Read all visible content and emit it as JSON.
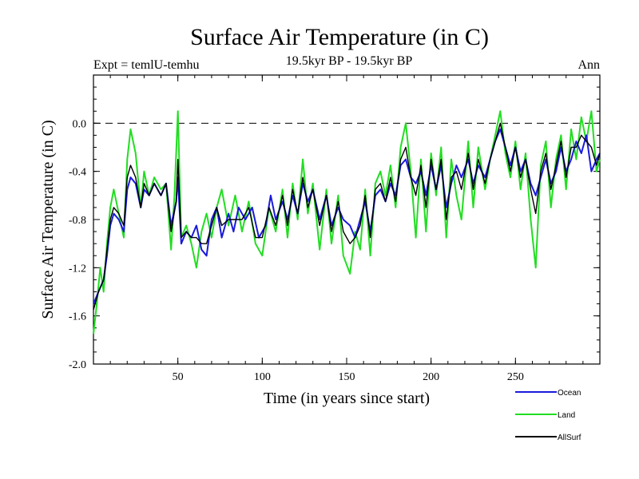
{
  "chart_data": {
    "type": "line",
    "title": "Surface Air Temperature (in C)",
    "subtitle": "19.5kyr BP - 19.5kyr BP",
    "experiment_label": "Expt = temlU-temhu",
    "season_label": "Ann",
    "xlabel": "Time (in years since start)",
    "ylabel": "Surface Air Temperature (in C)",
    "xlim": [
      0,
      300
    ],
    "ylim": [
      -2.0,
      0.4
    ],
    "x_ticks": [
      50,
      100,
      150,
      200,
      250
    ],
    "x_tick_labels": [
      "50",
      "100",
      "150",
      "200",
      "250"
    ],
    "y_ticks": [
      -2.0,
      -1.6,
      -1.2,
      -0.8,
      -0.4,
      0.0
    ],
    "y_tick_labels": [
      "-2.0",
      "-1.6",
      "-1.2",
      "-0.8",
      "-0.4",
      "0.0"
    ],
    "reference_line": 0.0,
    "series": [
      {
        "name": "Ocean",
        "color": "#1a1adc",
        "points": [
          [
            0,
            -1.5
          ],
          [
            3,
            -1.4
          ],
          [
            6,
            -1.3
          ],
          [
            8,
            -1.1
          ],
          [
            10,
            -0.85
          ],
          [
            12,
            -0.75
          ],
          [
            15,
            -0.8
          ],
          [
            18,
            -0.9
          ],
          [
            20,
            -0.55
          ],
          [
            22,
            -0.45
          ],
          [
            25,
            -0.5
          ],
          [
            28,
            -0.7
          ],
          [
            30,
            -0.55
          ],
          [
            33,
            -0.6
          ],
          [
            36,
            -0.5
          ],
          [
            40,
            -0.6
          ],
          [
            43,
            -0.5
          ],
          [
            46,
            -0.85
          ],
          [
            49,
            -0.65
          ],
          [
            50,
            -0.45
          ],
          [
            52,
            -1.0
          ],
          [
            55,
            -0.9
          ],
          [
            58,
            -0.95
          ],
          [
            61,
            -0.85
          ],
          [
            64,
            -1.05
          ],
          [
            67,
            -1.1
          ],
          [
            70,
            -0.8
          ],
          [
            73,
            -0.7
          ],
          [
            76,
            -0.95
          ],
          [
            80,
            -0.75
          ],
          [
            83,
            -0.9
          ],
          [
            86,
            -0.7
          ],
          [
            90,
            -0.8
          ],
          [
            94,
            -0.7
          ],
          [
            98,
            -0.95
          ],
          [
            102,
            -0.85
          ],
          [
            105,
            -0.6
          ],
          [
            108,
            -0.8
          ],
          [
            112,
            -0.65
          ],
          [
            115,
            -0.8
          ],
          [
            118,
            -0.6
          ],
          [
            121,
            -0.75
          ],
          [
            124,
            -0.5
          ],
          [
            127,
            -0.65
          ],
          [
            130,
            -0.55
          ],
          [
            134,
            -0.8
          ],
          [
            138,
            -0.6
          ],
          [
            141,
            -0.85
          ],
          [
            145,
            -0.7
          ],
          [
            148,
            -0.8
          ],
          [
            152,
            -0.85
          ],
          [
            155,
            -0.95
          ],
          [
            158,
            -0.8
          ],
          [
            161,
            -0.65
          ],
          [
            164,
            -0.9
          ],
          [
            167,
            -0.6
          ],
          [
            170,
            -0.55
          ],
          [
            173,
            -0.65
          ],
          [
            176,
            -0.5
          ],
          [
            179,
            -0.6
          ],
          [
            182,
            -0.35
          ],
          [
            185,
            -0.3
          ],
          [
            188,
            -0.45
          ],
          [
            191,
            -0.5
          ],
          [
            194,
            -0.4
          ],
          [
            197,
            -0.6
          ],
          [
            200,
            -0.35
          ],
          [
            203,
            -0.55
          ],
          [
            206,
            -0.35
          ],
          [
            209,
            -0.7
          ],
          [
            212,
            -0.5
          ],
          [
            215,
            -0.35
          ],
          [
            218,
            -0.45
          ],
          [
            222,
            -0.3
          ],
          [
            225,
            -0.5
          ],
          [
            228,
            -0.35
          ],
          [
            232,
            -0.45
          ],
          [
            235,
            -0.3
          ],
          [
            238,
            -0.15
          ],
          [
            241,
            -0.05
          ],
          [
            244,
            -0.2
          ],
          [
            247,
            -0.35
          ],
          [
            250,
            -0.2
          ],
          [
            253,
            -0.4
          ],
          [
            256,
            -0.3
          ],
          [
            259,
            -0.5
          ],
          [
            262,
            -0.6
          ],
          [
            265,
            -0.45
          ],
          [
            268,
            -0.3
          ],
          [
            271,
            -0.5
          ],
          [
            274,
            -0.4
          ],
          [
            277,
            -0.2
          ],
          [
            280,
            -0.4
          ],
          [
            283,
            -0.3
          ],
          [
            286,
            -0.15
          ],
          [
            289,
            -0.25
          ],
          [
            292,
            -0.1
          ],
          [
            295,
            -0.4
          ],
          [
            298,
            -0.3
          ],
          [
            300,
            -0.25
          ]
        ]
      },
      {
        "name": "Land",
        "color": "#22dd22",
        "points": [
          [
            0,
            -1.75
          ],
          [
            2,
            -1.5
          ],
          [
            4,
            -1.2
          ],
          [
            6,
            -1.4
          ],
          [
            8,
            -1.0
          ],
          [
            10,
            -0.7
          ],
          [
            12,
            -0.55
          ],
          [
            15,
            -0.75
          ],
          [
            18,
            -0.95
          ],
          [
            20,
            -0.3
          ],
          [
            22,
            -0.05
          ],
          [
            25,
            -0.25
          ],
          [
            28,
            -0.7
          ],
          [
            30,
            -0.4
          ],
          [
            33,
            -0.6
          ],
          [
            36,
            -0.45
          ],
          [
            40,
            -0.55
          ],
          [
            43,
            -0.5
          ],
          [
            46,
            -1.05
          ],
          [
            48,
            -0.6
          ],
          [
            50,
            0.1
          ],
          [
            52,
            -0.95
          ],
          [
            55,
            -0.85
          ],
          [
            58,
            -1.0
          ],
          [
            61,
            -1.2
          ],
          [
            64,
            -0.9
          ],
          [
            67,
            -0.75
          ],
          [
            70,
            -0.95
          ],
          [
            73,
            -0.7
          ],
          [
            76,
            -0.55
          ],
          [
            80,
            -0.85
          ],
          [
            84,
            -0.6
          ],
          [
            88,
            -0.9
          ],
          [
            92,
            -0.65
          ],
          [
            96,
            -1.0
          ],
          [
            100,
            -1.1
          ],
          [
            104,
            -0.7
          ],
          [
            108,
            -0.9
          ],
          [
            112,
            -0.55
          ],
          [
            115,
            -0.95
          ],
          [
            118,
            -0.5
          ],
          [
            121,
            -0.8
          ],
          [
            124,
            -0.3
          ],
          [
            127,
            -0.75
          ],
          [
            130,
            -0.5
          ],
          [
            134,
            -1.05
          ],
          [
            138,
            -0.55
          ],
          [
            141,
            -1.0
          ],
          [
            145,
            -0.6
          ],
          [
            148,
            -1.1
          ],
          [
            152,
            -1.25
          ],
          [
            155,
            -0.9
          ],
          [
            158,
            -1.05
          ],
          [
            161,
            -0.55
          ],
          [
            164,
            -1.1
          ],
          [
            167,
            -0.5
          ],
          [
            170,
            -0.4
          ],
          [
            173,
            -0.6
          ],
          [
            176,
            -0.35
          ],
          [
            179,
            -0.7
          ],
          [
            182,
            -0.2
          ],
          [
            185,
            0.0
          ],
          [
            188,
            -0.4
          ],
          [
            191,
            -0.95
          ],
          [
            194,
            -0.3
          ],
          [
            197,
            -0.9
          ],
          [
            200,
            -0.25
          ],
          [
            203,
            -0.6
          ],
          [
            206,
            -0.2
          ],
          [
            209,
            -0.95
          ],
          [
            212,
            -0.3
          ],
          [
            215,
            -0.6
          ],
          [
            218,
            -0.8
          ],
          [
            222,
            -0.15
          ],
          [
            225,
            -0.7
          ],
          [
            228,
            -0.2
          ],
          [
            232,
            -0.55
          ],
          [
            235,
            -0.3
          ],
          [
            238,
            -0.1
          ],
          [
            241,
            0.1
          ],
          [
            244,
            -0.25
          ],
          [
            247,
            -0.45
          ],
          [
            250,
            -0.15
          ],
          [
            253,
            -0.55
          ],
          [
            256,
            -0.25
          ],
          [
            259,
            -0.8
          ],
          [
            262,
            -1.2
          ],
          [
            265,
            -0.35
          ],
          [
            268,
            -0.15
          ],
          [
            271,
            -0.7
          ],
          [
            274,
            -0.3
          ],
          [
            277,
            -0.1
          ],
          [
            280,
            -0.55
          ],
          [
            283,
            -0.05
          ],
          [
            286,
            -0.3
          ],
          [
            289,
            0.05
          ],
          [
            292,
            -0.15
          ],
          [
            295,
            0.1
          ],
          [
            298,
            -0.4
          ],
          [
            300,
            -0.3
          ]
        ]
      },
      {
        "name": "AllSurf",
        "color": "#000000",
        "points": [
          [
            0,
            -1.55
          ],
          [
            3,
            -1.4
          ],
          [
            6,
            -1.3
          ],
          [
            8,
            -1.05
          ],
          [
            10,
            -0.8
          ],
          [
            12,
            -0.7
          ],
          [
            15,
            -0.75
          ],
          [
            18,
            -0.85
          ],
          [
            20,
            -0.45
          ],
          [
            22,
            -0.35
          ],
          [
            25,
            -0.45
          ],
          [
            28,
            -0.7
          ],
          [
            30,
            -0.5
          ],
          [
            33,
            -0.6
          ],
          [
            36,
            -0.5
          ],
          [
            40,
            -0.6
          ],
          [
            43,
            -0.5
          ],
          [
            46,
            -0.9
          ],
          [
            49,
            -0.65
          ],
          [
            50,
            -0.3
          ],
          [
            52,
            -0.95
          ],
          [
            55,
            -0.9
          ],
          [
            58,
            -0.95
          ],
          [
            61,
            -0.95
          ],
          [
            64,
            -1.0
          ],
          [
            67,
            -1.0
          ],
          [
            70,
            -0.85
          ],
          [
            73,
            -0.7
          ],
          [
            76,
            -0.85
          ],
          [
            80,
            -0.8
          ],
          [
            84,
            -0.8
          ],
          [
            88,
            -0.8
          ],
          [
            92,
            -0.7
          ],
          [
            96,
            -0.95
          ],
          [
            100,
            -0.95
          ],
          [
            104,
            -0.7
          ],
          [
            108,
            -0.85
          ],
          [
            112,
            -0.6
          ],
          [
            115,
            -0.85
          ],
          [
            118,
            -0.55
          ],
          [
            121,
            -0.75
          ],
          [
            124,
            -0.45
          ],
          [
            127,
            -0.7
          ],
          [
            130,
            -0.55
          ],
          [
            134,
            -0.85
          ],
          [
            138,
            -0.6
          ],
          [
            141,
            -0.9
          ],
          [
            145,
            -0.65
          ],
          [
            148,
            -0.9
          ],
          [
            152,
            -1.0
          ],
          [
            155,
            -0.95
          ],
          [
            158,
            -0.85
          ],
          [
            161,
            -0.6
          ],
          [
            164,
            -0.95
          ],
          [
            167,
            -0.55
          ],
          [
            170,
            -0.5
          ],
          [
            173,
            -0.65
          ],
          [
            176,
            -0.45
          ],
          [
            179,
            -0.65
          ],
          [
            182,
            -0.3
          ],
          [
            185,
            -0.2
          ],
          [
            188,
            -0.45
          ],
          [
            191,
            -0.6
          ],
          [
            194,
            -0.35
          ],
          [
            197,
            -0.7
          ],
          [
            200,
            -0.3
          ],
          [
            203,
            -0.55
          ],
          [
            206,
            -0.3
          ],
          [
            209,
            -0.8
          ],
          [
            212,
            -0.45
          ],
          [
            215,
            -0.4
          ],
          [
            218,
            -0.55
          ],
          [
            222,
            -0.25
          ],
          [
            225,
            -0.55
          ],
          [
            228,
            -0.3
          ],
          [
            232,
            -0.5
          ],
          [
            235,
            -0.3
          ],
          [
            238,
            -0.15
          ],
          [
            241,
            0.0
          ],
          [
            244,
            -0.2
          ],
          [
            247,
            -0.4
          ],
          [
            250,
            -0.2
          ],
          [
            253,
            -0.45
          ],
          [
            256,
            -0.3
          ],
          [
            259,
            -0.55
          ],
          [
            262,
            -0.75
          ],
          [
            265,
            -0.4
          ],
          [
            268,
            -0.25
          ],
          [
            271,
            -0.55
          ],
          [
            274,
            -0.35
          ],
          [
            277,
            -0.15
          ],
          [
            280,
            -0.45
          ],
          [
            283,
            -0.2
          ],
          [
            286,
            -0.2
          ],
          [
            289,
            -0.1
          ],
          [
            292,
            -0.15
          ],
          [
            295,
            -0.2
          ],
          [
            298,
            -0.35
          ],
          [
            300,
            -0.25
          ]
        ]
      }
    ]
  }
}
